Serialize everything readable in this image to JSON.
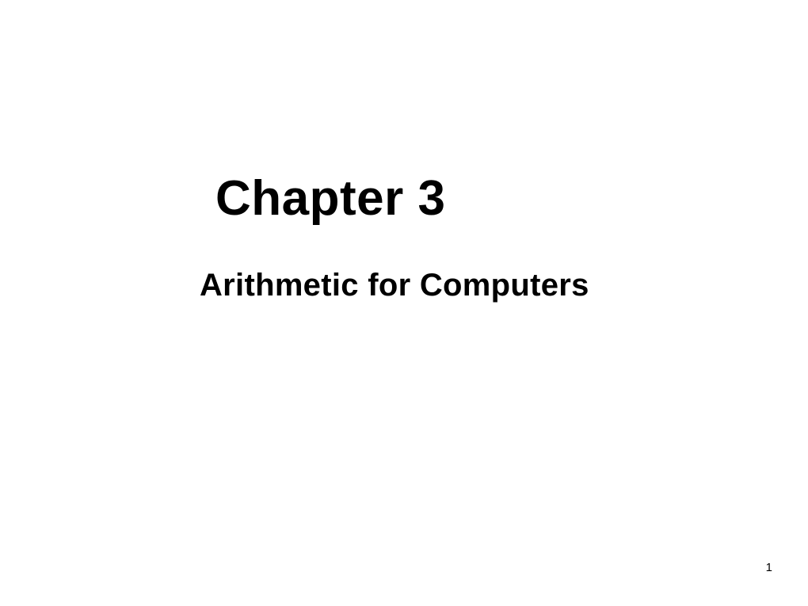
{
  "slide": {
    "title": "Chapter 3",
    "subtitle": "Arithmetic for Computers",
    "page_number": "1",
    "background_color": "#ffffff",
    "text_color": "#000000",
    "title_fontsize": 62,
    "subtitle_fontsize": 40,
    "pagenum_fontsize": 15,
    "title_fontweight": 900,
    "subtitle_fontweight": 900,
    "font_family": "Arial, Helvetica, sans-serif"
  }
}
